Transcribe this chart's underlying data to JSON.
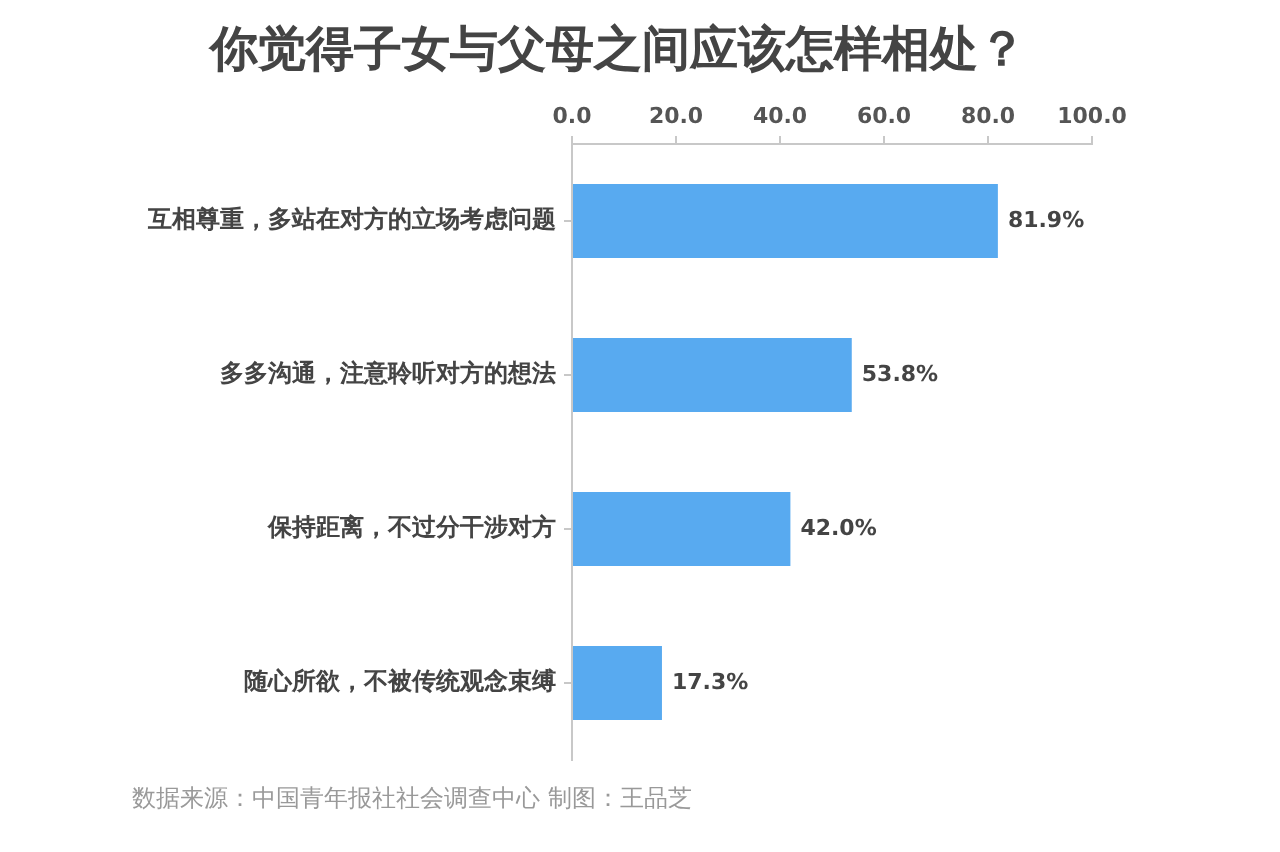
{
  "chart_data": {
    "type": "bar",
    "orientation": "horizontal",
    "title": "你觉得子女与父母之间应该怎样相处？",
    "categories": [
      "互相尊重，多站在对方的立场考虑问题",
      "多多沟通，注意聆听对方的想法",
      "保持距离，不过分干涉对方",
      "随心所欲，不被传统观念束缚"
    ],
    "values": [
      81.9,
      53.8,
      42.0,
      17.3
    ],
    "color": "#58aaf0",
    "value_labels": [
      "81.9%",
      "53.8%",
      "42.0%",
      "17.3%"
    ],
    "xlim": [
      0,
      100
    ],
    "xticks": [
      {
        "value": 0,
        "label": "0.0"
      },
      {
        "value": 20,
        "label": "20.0"
      },
      {
        "value": 40,
        "label": "40.0"
      },
      {
        "value": 60,
        "label": "60.0"
      },
      {
        "value": 80,
        "label": "80.0"
      },
      {
        "value": 100,
        "label": "100.0"
      }
    ],
    "grid": false,
    "legend": false,
    "annotations": [
      "数据来源：中国青年报社社会调查中心 制图：王品芝"
    ]
  }
}
